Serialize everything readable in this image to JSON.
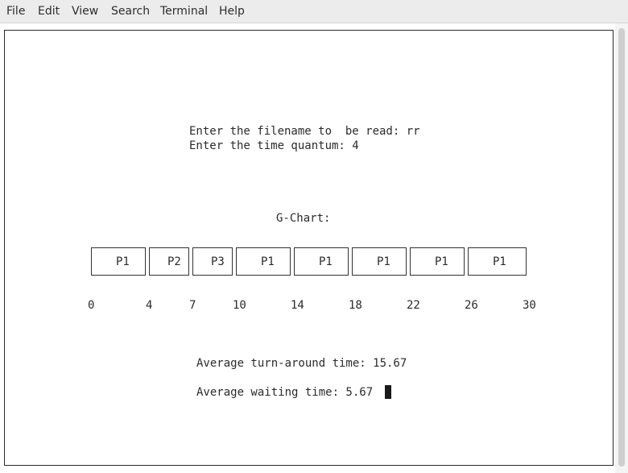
{
  "menu": {
    "items": [
      "File",
      "Edit",
      "View",
      "Search",
      "Terminal",
      "Help"
    ]
  },
  "terminal": {
    "line1": "Enter the filename to  be read: rr",
    "line2": "Enter the time quantum: 4",
    "chart_title": "G-Chart:",
    "gantt": {
      "processes": [
        "P1",
        "P2",
        "P3",
        "P1",
        "P1",
        "P1",
        "P1",
        "P1"
      ],
      "times": [
        "0",
        "4",
        "7",
        "10",
        "14",
        "18",
        "22",
        "26",
        "30"
      ]
    },
    "avg_turnaround": "Average turn-around time: 15.67",
    "avg_waiting": "Average waiting time: 5.67"
  }
}
